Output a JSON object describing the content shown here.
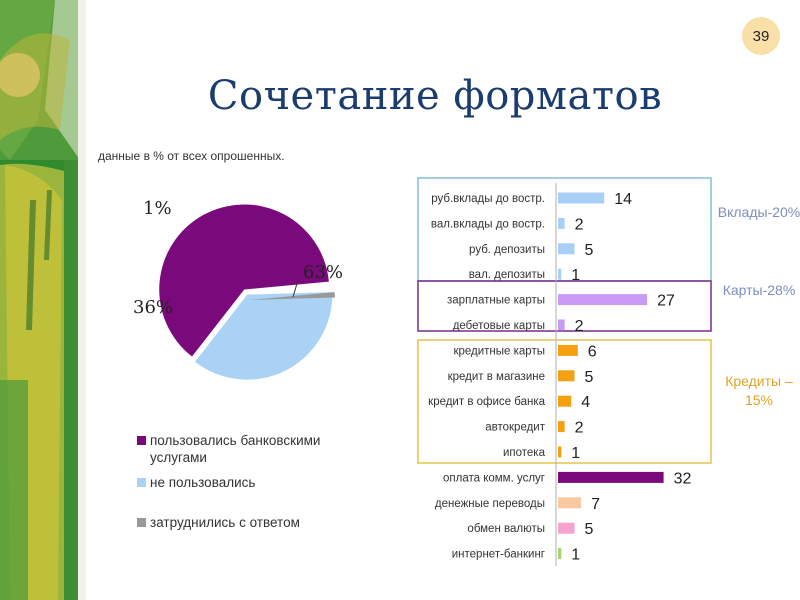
{
  "slide": {
    "page_number": "39",
    "title": "Сочетание форматов",
    "subtitle": "данные в % от всех опрошенных."
  },
  "pie": {
    "labels": [
      "63%",
      "36%",
      "1%"
    ],
    "legend": [
      {
        "label": "пользовались  банковскими услугами",
        "color": "#7a0a7c"
      },
      {
        "label": "не пользовались",
        "color": "#a9d2f5"
      },
      {
        "label": "затруднились с ответом",
        "color": "#999999"
      }
    ]
  },
  "groups": [
    {
      "label": "Вклады-20%",
      "color": "#7f8ebe"
    },
    {
      "label": "Карты-28%",
      "color": "#7f8ebe"
    },
    {
      "label": "Кредиты – 15%",
      "color": "#e0a325"
    }
  ],
  "chart_data": [
    {
      "type": "pie",
      "title": "данные в % от всех опрошенных.",
      "categories": [
        "пользовались  банковскими услугами",
        "не пользовались",
        "затруднились с ответом"
      ],
      "values": [
        63,
        36,
        1
      ],
      "colors": [
        "#7a0a7c",
        "#a9d2f5",
        "#999999"
      ]
    },
    {
      "type": "bar",
      "orientation": "horizontal",
      "categories": [
        "руб.вклады до востр.",
        "вал.вклады до востр.",
        "руб. депозиты",
        "вал. депозиты",
        "зарплатные карты",
        "дебетовые карты",
        "кредитные карты",
        "кредит в магазине",
        "кредит в офисе банка",
        "автокредит",
        "ипотека",
        "оплата комм. услуг",
        "денежные переводы",
        "обмен валюты",
        "интернет-банкинг"
      ],
      "values": [
        14,
        2,
        5,
        1,
        27,
        2,
        6,
        5,
        4,
        2,
        1,
        32,
        7,
        5,
        1
      ],
      "colors": [
        "#a8cff5",
        "#a8cff5",
        "#a8cff5",
        "#a8cff5",
        "#c99bf5",
        "#c99bf5",
        "#f5a010",
        "#f5a010",
        "#f5a010",
        "#f5a010",
        "#f5a010",
        "#7a0a7c",
        "#f9c9a0",
        "#f7a3d0",
        "#a7d470"
      ]
    }
  ]
}
